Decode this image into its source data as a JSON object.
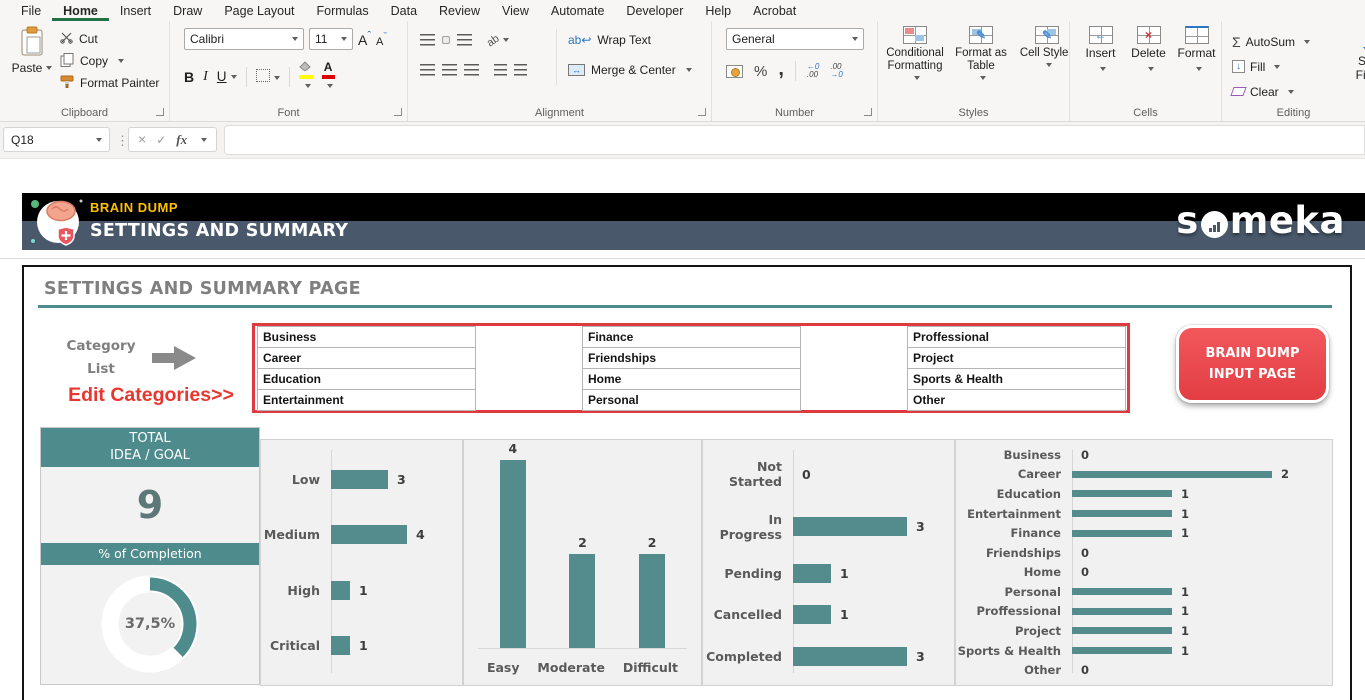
{
  "ribbon": {
    "tabs": [
      "File",
      "Home",
      "Insert",
      "Draw",
      "Page Layout",
      "Formulas",
      "Data",
      "Review",
      "View",
      "Automate",
      "Developer",
      "Help",
      "Acrobat"
    ],
    "active_tab": "Home",
    "groups": {
      "clipboard": {
        "label": "Clipboard",
        "paste": "Paste",
        "cut": "Cut",
        "copy": "Copy",
        "format_painter": "Format Painter"
      },
      "font": {
        "label": "Font",
        "family": "Calibri",
        "size": "11"
      },
      "alignment": {
        "label": "Alignment",
        "wrap_text": "Wrap Text",
        "merge_center": "Merge & Center"
      },
      "number": {
        "label": "Number",
        "format": "General"
      },
      "styles": {
        "label": "Styles",
        "conditional_formatting": "Conditional Formatting",
        "format_as_table": "Format as Table",
        "cell_styles": "Cell Styles"
      },
      "cells": {
        "label": "Cells",
        "insert": "Insert",
        "delete": "Delete",
        "format": "Format"
      },
      "editing": {
        "label": "Editing",
        "autosum": "AutoSum",
        "fill": "Fill",
        "clear": "Clear",
        "sort": "Sort",
        "filter": "Filter"
      }
    }
  },
  "formula_bar": {
    "name_box": "Q18",
    "fx": "fx",
    "formula": ""
  },
  "banner": {
    "app_title": "BRAIN DUMP",
    "page_title": "SETTINGS AND SUMMARY",
    "brand": "someka",
    "brand_pre": "s",
    "brand_post": "meka"
  },
  "page": {
    "title": "SETTINGS AND SUMMARY PAGE",
    "category_list_label": [
      "Category",
      "List"
    ],
    "edit_categories": "Edit Categories>>",
    "categories_columns": [
      [
        "Business",
        "Career",
        "Education",
        "Entertainment"
      ],
      [
        "Finance",
        "Friendships",
        "Home",
        "Personal"
      ],
      [
        "Proffessional",
        "Project",
        "Sports & Health",
        "Other"
      ]
    ],
    "input_page_button": "BRAIN DUMP INPUT PAGE"
  },
  "stats": {
    "total_header": [
      "TOTAL",
      "IDEA / GOAL"
    ],
    "total_value": "9",
    "completion_header": "% of Completion",
    "completion_label": "37,5%",
    "completion_pct": 37.5
  },
  "chart_data": [
    {
      "id": "priority",
      "type": "bar",
      "orientation": "horizontal",
      "categories": [
        "Low",
        "Medium",
        "High",
        "Critical"
      ],
      "values": [
        3,
        4,
        1,
        1
      ],
      "xlim": [
        0,
        4
      ],
      "data_labels": true,
      "grid": false,
      "legend": false
    },
    {
      "id": "difficulty",
      "type": "bar",
      "orientation": "vertical",
      "categories": [
        "Easy",
        "Moderate",
        "Difficult"
      ],
      "values": [
        4,
        2,
        2
      ],
      "ylim": [
        0,
        4
      ],
      "data_labels": true,
      "grid": false,
      "legend": false
    },
    {
      "id": "status",
      "type": "bar",
      "orientation": "horizontal",
      "categories": [
        "Not Started",
        "In Progress",
        "Pending",
        "Cancelled",
        "Completed"
      ],
      "values": [
        0,
        3,
        1,
        1,
        3
      ],
      "xlim": [
        0,
        3
      ],
      "data_labels": true,
      "grid": false,
      "legend": false
    },
    {
      "id": "category",
      "type": "bar",
      "orientation": "horizontal",
      "categories": [
        "Business",
        "Career",
        "Education",
        "Entertainment",
        "Finance",
        "Friendships",
        "Home",
        "Personal",
        "Proffessional",
        "Project",
        "Sports & Health",
        "Other"
      ],
      "values": [
        0,
        2,
        1,
        1,
        1,
        0,
        0,
        1,
        1,
        1,
        1,
        0
      ],
      "xlim": [
        0,
        2
      ],
      "data_labels": true,
      "grid": false,
      "legend": false
    },
    {
      "id": "completion",
      "type": "donut",
      "values": [
        37.5,
        62.5
      ],
      "label": "37,5%"
    }
  ],
  "colors": {
    "bar_teal": "#548C8D",
    "accent_teal": "#4E8B8D",
    "red_box": "#DF3A40",
    "button_red": "#EA494E",
    "edit_red": "#E8372F",
    "banner_slate": "#49586B",
    "banner_black": "#000000",
    "brand_yellow": "#FFC000",
    "excel_green": "#217346",
    "title_gray": "#7F7F7F"
  }
}
